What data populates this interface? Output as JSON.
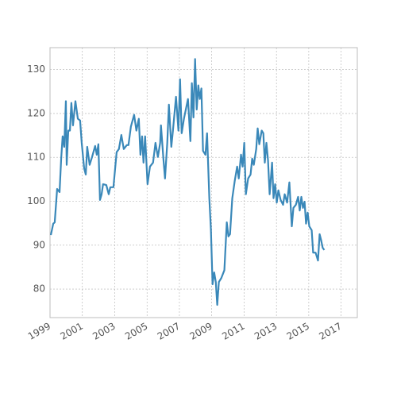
{
  "chart_data": {
    "type": "line",
    "x": [
      1999.05,
      1999.2,
      1999.29,
      1999.44,
      1999.59,
      1999.69,
      1999.78,
      1999.88,
      1999.98,
      2000.03,
      2000.13,
      2000.23,
      2000.32,
      2000.42,
      2000.57,
      2000.72,
      2000.86,
      2000.96,
      2001.11,
      2001.21,
      2001.3,
      2001.45,
      2001.6,
      2001.79,
      2001.89,
      2001.99,
      2002.09,
      2002.19,
      2002.28,
      2002.48,
      2002.63,
      2002.73,
      2002.92,
      2003.12,
      2003.26,
      2003.41,
      2003.56,
      2003.75,
      2003.85,
      2004.0,
      2004.2,
      2004.34,
      2004.49,
      2004.59,
      2004.69,
      2004.78,
      2004.88,
      2005.03,
      2005.18,
      2005.37,
      2005.52,
      2005.67,
      2005.81,
      2005.86,
      2006.01,
      2006.11,
      2006.25,
      2006.35,
      2006.5,
      2006.6,
      2006.79,
      2006.94,
      2007.04,
      2007.14,
      2007.28,
      2007.53,
      2007.68,
      2007.77,
      2007.87,
      2007.97,
      2008.07,
      2008.17,
      2008.26,
      2008.36,
      2008.46,
      2008.61,
      2008.71,
      2008.85,
      2008.95,
      2009.05,
      2009.15,
      2009.25,
      2009.34,
      2009.44,
      2009.59,
      2009.78,
      2009.93,
      2010.03,
      2010.13,
      2010.27,
      2010.42,
      2010.57,
      2010.67,
      2010.81,
      2010.91,
      2011.01,
      2011.11,
      2011.25,
      2011.4,
      2011.5,
      2011.6,
      2011.75,
      2011.84,
      2011.94,
      2012.09,
      2012.19,
      2012.28,
      2012.38,
      2012.48,
      2012.58,
      2012.73,
      2012.82,
      2012.92,
      2013.02,
      2013.12,
      2013.26,
      2013.41,
      2013.51,
      2013.66,
      2013.8,
      2013.95,
      2014.05,
      2014.2,
      2014.34,
      2014.44,
      2014.54,
      2014.64,
      2014.74,
      2014.83,
      2014.93,
      2015.03,
      2015.18,
      2015.27,
      2015.42,
      2015.57,
      2015.67,
      2015.76,
      2015.86,
      2015.96
    ],
    "series": [
      {
        "color": "#3a88b9",
        "values": [
          92.3,
          94.9,
          95.2,
          102.8,
          102.1,
          109.7,
          114.8,
          112.4,
          122.8,
          108.3,
          116.1,
          116.1,
          122.4,
          117.3,
          122.8,
          118.8,
          118.4,
          113.3,
          107.5,
          106.1,
          112.4,
          108.3,
          110.1,
          112.6,
          110.6,
          113.0,
          100.3,
          101.6,
          103.9,
          103.7,
          101.6,
          103.2,
          103.2,
          111.2,
          111.9,
          115.1,
          111.9,
          112.8,
          112.8,
          117.0,
          119.7,
          116.1,
          118.8,
          110.6,
          114.8,
          108.8,
          114.8,
          103.9,
          107.9,
          108.8,
          113.3,
          110.1,
          113.3,
          117.3,
          109.7,
          105.2,
          113.3,
          122.0,
          112.4,
          116.1,
          123.8,
          116.1,
          127.8,
          115.5,
          118.8,
          123.3,
          113.7,
          126.9,
          119.1,
          132.4,
          120.9,
          126.4,
          123.3,
          125.7,
          111.5,
          110.6,
          115.5,
          100.7,
          93.4,
          81.1,
          83.8,
          81.6,
          76.4,
          81.6,
          82.5,
          84.3,
          95.2,
          92.0,
          92.5,
          100.7,
          104.6,
          107.9,
          105.2,
          110.6,
          107.9,
          113.3,
          101.6,
          105.2,
          106.1,
          109.7,
          108.3,
          111.9,
          116.6,
          113.0,
          116.1,
          115.5,
          108.8,
          113.3,
          109.3,
          101.6,
          108.8,
          100.7,
          103.9,
          99.7,
          102.5,
          100.3,
          99.2,
          101.6,
          99.7,
          104.3,
          94.3,
          98.5,
          99.2,
          101.0,
          97.9,
          101.0,
          98.5,
          99.9,
          94.9,
          97.4,
          94.3,
          93.4,
          88.3,
          88.3,
          86.5,
          92.5,
          91.2,
          89.4,
          88.9
        ]
      }
    ],
    "xlim": [
      1999,
      2018
    ],
    "xticks": [
      1999,
      2001,
      2003,
      2005,
      2007,
      2009,
      2011,
      2013,
      2015,
      2017
    ],
    "ylim": [
      73.5,
      135
    ],
    "yticks": [
      80,
      90,
      100,
      110,
      120,
      130
    ],
    "grid": true
  }
}
